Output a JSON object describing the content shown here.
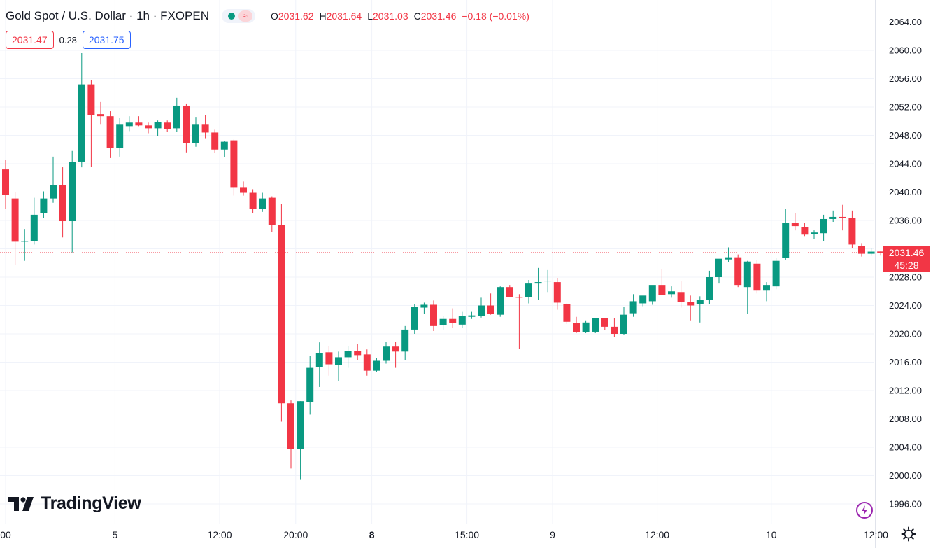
{
  "header": {
    "title": "Gold Spot / U.S. Dollar · 1h · FXOPEN",
    "wave_glyph": "≈",
    "ohlc": [
      {
        "key": "O",
        "value": "2031.62"
      },
      {
        "key": "H",
        "value": "2031.64"
      },
      {
        "key": "L",
        "value": "2031.03"
      },
      {
        "key": "C",
        "value": "2031.46"
      }
    ],
    "change": "−0.18 (−0.01%)"
  },
  "quote": {
    "bid": "2031.47",
    "spread": "0.28",
    "ask": "2031.75"
  },
  "last_price": {
    "price": "2031.46",
    "countdown": "45:28"
  },
  "brand": "TradingView",
  "icons": {
    "status": "market-open-dot-icon",
    "settings": "gear-icon",
    "alerts": "bolt-icon"
  },
  "colors": {
    "up": "#089981",
    "down": "#f23645",
    "grid": "#f0f3fa",
    "axis_text": "#131722",
    "price_line": "#f23645"
  },
  "chart_data": {
    "type": "candlestick",
    "y_ticks": [
      "2064.00",
      "2060.00",
      "2056.00",
      "2052.00",
      "2048.00",
      "2044.00",
      "2040.00",
      "2036.00",
      "2032.00",
      "2028.00",
      "2024.00",
      "2020.00",
      "2016.00",
      "2012.00",
      "2008.00",
      "2004.00",
      "2000.00",
      "1996.00"
    ],
    "ylim": [
      1994,
      2066
    ],
    "x_ticks": [
      {
        "label": "00",
        "bar": 0.0,
        "bold": false
      },
      {
        "label": "5",
        "bar": 11.5,
        "bold": false
      },
      {
        "label": "12:00",
        "bar": 22.5,
        "bold": false
      },
      {
        "label": "20:00",
        "bar": 30.5,
        "bold": false
      },
      {
        "label": "8",
        "bar": 38.5,
        "bold": true
      },
      {
        "label": "15:00",
        "bar": 48.5,
        "bold": false
      },
      {
        "label": "9",
        "bar": 57.5,
        "bold": false
      },
      {
        "label": "12:00",
        "bar": 68.5,
        "bold": false
      },
      {
        "label": "10",
        "bar": 80.5,
        "bold": false
      },
      {
        "label": "12:00",
        "bar": 91.5,
        "bold": false
      }
    ],
    "last_price": 2031.46,
    "candles": [
      [
        2043.2,
        2044.5,
        2037.6,
        2039.6
      ],
      [
        2039.1,
        2040.0,
        2029.7,
        2033.0
      ],
      [
        2033.0,
        2034.8,
        2030.3,
        2033.1
      ],
      [
        2033.1,
        2039.2,
        2032.6,
        2036.8
      ],
      [
        2037.0,
        2040.1,
        2036.3,
        2039.1
      ],
      [
        2039.1,
        2045.0,
        2038.5,
        2041.0
      ],
      [
        2041.0,
        2043.5,
        2033.6,
        2035.9
      ],
      [
        2035.9,
        2045.8,
        2031.5,
        2044.2
      ],
      [
        2044.3,
        2059.6,
        2043.5,
        2055.2
      ],
      [
        2055.2,
        2055.8,
        2043.6,
        2050.9
      ],
      [
        2051.0,
        2052.7,
        2049.6,
        2050.7
      ],
      [
        2050.7,
        2051.4,
        2044.8,
        2046.2
      ],
      [
        2046.2,
        2050.5,
        2045.0,
        2049.6
      ],
      [
        2049.3,
        2050.7,
        2048.6,
        2049.8
      ],
      [
        2049.8,
        2050.7,
        2049.3,
        2049.4
      ],
      [
        2049.4,
        2049.8,
        2048.3,
        2049.0
      ],
      [
        2049.0,
        2050.1,
        2047.9,
        2049.9
      ],
      [
        2049.8,
        2050.1,
        2048.5,
        2048.9
      ],
      [
        2049.0,
        2053.3,
        2048.5,
        2052.2
      ],
      [
        2052.2,
        2052.5,
        2045.6,
        2046.9
      ],
      [
        2046.9,
        2050.6,
        2046.4,
        2049.6
      ],
      [
        2049.6,
        2050.9,
        2047.6,
        2048.4
      ],
      [
        2048.4,
        2048.8,
        2045.5,
        2046.0
      ],
      [
        2046.0,
        2047.2,
        2044.9,
        2047.1
      ],
      [
        2047.3,
        2047.4,
        2039.5,
        2040.7
      ],
      [
        2040.7,
        2041.5,
        2039.5,
        2039.9
      ],
      [
        2039.9,
        2040.4,
        2037.0,
        2037.6
      ],
      [
        2037.6,
        2039.9,
        2037.2,
        2039.1
      ],
      [
        2039.2,
        2039.4,
        2034.4,
        2035.4
      ],
      [
        2035.4,
        2038.3,
        2007.6,
        2010.2
      ],
      [
        2010.2,
        2010.6,
        2001.0,
        2003.8
      ],
      [
        2003.8,
        2010.5,
        1999.4,
        2010.5
      ],
      [
        2010.4,
        2016.9,
        2008.6,
        2015.2
      ],
      [
        2015.3,
        2018.8,
        2012.5,
        2017.3
      ],
      [
        2017.4,
        2018.3,
        2014.1,
        2015.7
      ],
      [
        2015.6,
        2017.5,
        2013.3,
        2016.7
      ],
      [
        2016.7,
        2018.3,
        2015.2,
        2017.6
      ],
      [
        2017.6,
        2018.6,
        2016.3,
        2017.0
      ],
      [
        2017.1,
        2017.8,
        2014.1,
        2014.8
      ],
      [
        2014.8,
        2016.6,
        2014.6,
        2016.2
      ],
      [
        2016.2,
        2018.9,
        2015.8,
        2018.2
      ],
      [
        2018.2,
        2018.9,
        2015.2,
        2017.5
      ],
      [
        2017.5,
        2021.1,
        2016.3,
        2020.6
      ],
      [
        2020.6,
        2024.2,
        2020.0,
        2023.8
      ],
      [
        2023.7,
        2024.4,
        2022.8,
        2024.1
      ],
      [
        2024.1,
        2024.7,
        2020.4,
        2021.1
      ],
      [
        2021.2,
        2022.5,
        2020.6,
        2022.1
      ],
      [
        2022.1,
        2023.6,
        2020.8,
        2021.5
      ],
      [
        2021.3,
        2023.1,
        2020.8,
        2022.5
      ],
      [
        2022.4,
        2023.1,
        2022.1,
        2022.6
      ],
      [
        2022.5,
        2025.1,
        2022.3,
        2024.0
      ],
      [
        2024.0,
        2025.7,
        2022.7,
        2022.8
      ],
      [
        2022.7,
        2026.7,
        2022.4,
        2026.6
      ],
      [
        2026.6,
        2026.9,
        2025.9,
        2025.2
      ],
      [
        2025.2,
        2025.6,
        2017.9,
        2025.1
      ],
      [
        2025.2,
        2027.6,
        2024.3,
        2027.1
      ],
      [
        2027.1,
        2029.3,
        2024.8,
        2027.3
      ],
      [
        2027.4,
        2029.0,
        2025.9,
        2027.5
      ],
      [
        2027.3,
        2027.9,
        2023.4,
        2024.4
      ],
      [
        2024.2,
        2024.3,
        2021.4,
        2021.7
      ],
      [
        2021.5,
        2022.4,
        2020.1,
        2020.2
      ],
      [
        2020.2,
        2021.9,
        2020.1,
        2021.6
      ],
      [
        2020.3,
        2022.2,
        2020.1,
        2022.2
      ],
      [
        2022.2,
        2022.2,
        2020.5,
        2021.0
      ],
      [
        2021.0,
        2022.2,
        2019.6,
        2020.0
      ],
      [
        2020.0,
        2023.8,
        2019.9,
        2022.7
      ],
      [
        2022.9,
        2025.6,
        2022.4,
        2024.6
      ],
      [
        2024.3,
        2025.2,
        2023.9,
        2025.4
      ],
      [
        2024.6,
        2026.8,
        2024.1,
        2026.9
      ],
      [
        2026.9,
        2029.1,
        2026.1,
        2025.5
      ],
      [
        2025.6,
        2026.7,
        2025.1,
        2026.0
      ],
      [
        2025.9,
        2027.4,
        2023.7,
        2024.5
      ],
      [
        2024.5,
        2025.4,
        2021.9,
        2024.0
      ],
      [
        2024.2,
        2025.3,
        2021.6,
        2024.8
      ],
      [
        2024.8,
        2028.9,
        2024.2,
        2028.0
      ],
      [
        2028.0,
        2030.5,
        2027.1,
        2030.6
      ],
      [
        2030.5,
        2032.2,
        2030.1,
        2030.8
      ],
      [
        2030.8,
        2031.2,
        2026.6,
        2026.9
      ],
      [
        2026.6,
        2030.3,
        2022.8,
        2030.2
      ],
      [
        2029.9,
        2030.4,
        2025.7,
        2026.1
      ],
      [
        2026.1,
        2027.3,
        2024.6,
        2026.9
      ],
      [
        2026.7,
        2030.7,
        2026.3,
        2030.3
      ],
      [
        2030.7,
        2037.6,
        2030.4,
        2035.7
      ],
      [
        2035.7,
        2037.0,
        2034.6,
        2035.2
      ],
      [
        2035.1,
        2035.7,
        2033.8,
        2034.0
      ],
      [
        2034.1,
        2034.6,
        2033.4,
        2034.3
      ],
      [
        2034.2,
        2036.8,
        2033.1,
        2036.2
      ],
      [
        2036.2,
        2037.4,
        2035.8,
        2036.5
      ],
      [
        2036.5,
        2038.2,
        2034.6,
        2036.3
      ],
      [
        2036.3,
        2037.4,
        2032.1,
        2032.6
      ],
      [
        2032.4,
        2032.8,
        2030.9,
        2031.3
      ],
      [
        2031.3,
        2032.1,
        2031.0,
        2031.6
      ],
      [
        2031.62,
        2031.64,
        2031.03,
        2031.46
      ]
    ]
  }
}
